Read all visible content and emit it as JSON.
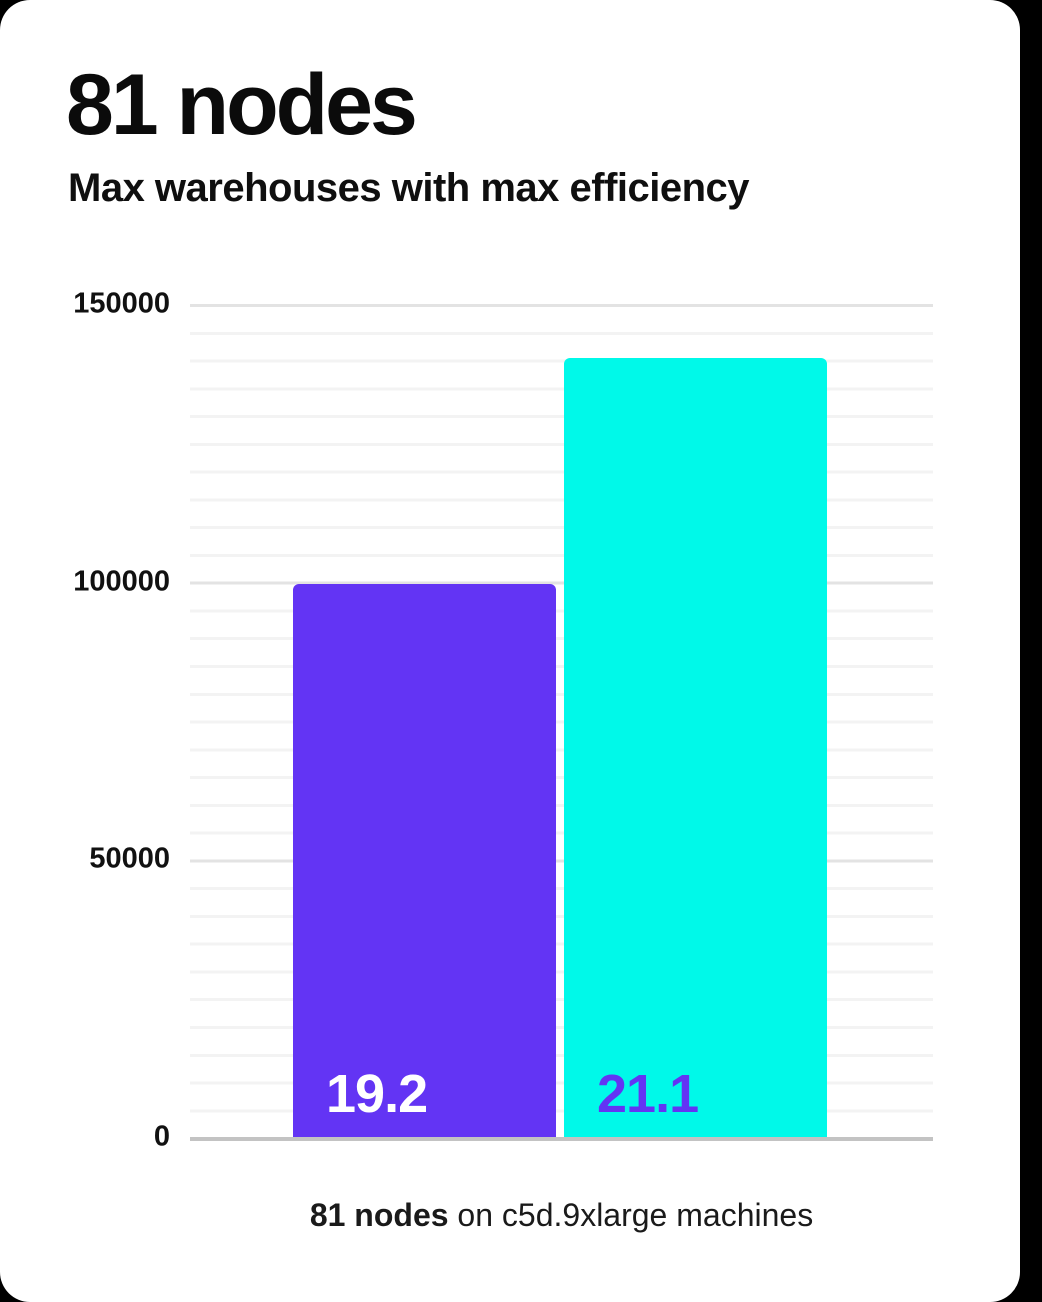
{
  "header": {
    "title": "81 nodes",
    "subtitle": "Max warehouses with max efficiency"
  },
  "chart_data": {
    "type": "bar",
    "title": "81 nodes",
    "subtitle": "Max warehouses with max efficiency",
    "xlabel": "",
    "ylabel": "",
    "ylim": [
      0,
      150000
    ],
    "yticks": [
      0,
      50000,
      100000,
      150000
    ],
    "minor_gridline_step": 5000,
    "grid": "horizontal-only",
    "legend": "none",
    "series": [
      {
        "name": "19.2",
        "label": "19.2",
        "value": 99500,
        "bar_color": "#6334f4",
        "label_color": "#ffffff"
      },
      {
        "name": "21.1",
        "label": "21.1",
        "value": 140300,
        "bar_color": "#00f9e9",
        "label_color": "#6334f4"
      }
    ],
    "caption": "81 nodes on c5d.9xlarge machines"
  },
  "caption": {
    "bold": "81 nodes",
    "rest": " on c5d.9xlarge machines"
  },
  "colors": {
    "background": "#000000",
    "card": "#ffffff",
    "bar_purple": "#6334f4",
    "bar_cyan": "#00f9e9",
    "axis_line": "#c3c3c3",
    "gridline_major": "#e3e3e3",
    "gridline_minor": "#f3f3f3",
    "text": "#111111"
  }
}
